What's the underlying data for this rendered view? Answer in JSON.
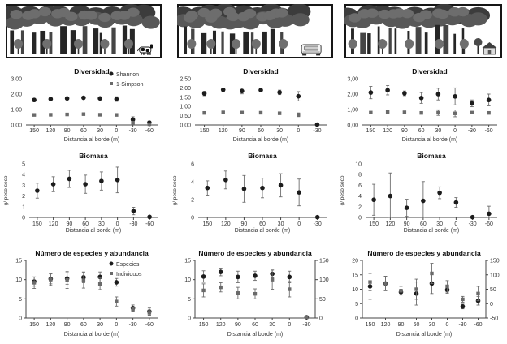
{
  "style": {
    "circle": "#1c1c1c",
    "square": "#6a6a6a",
    "error": "#6e6e6e",
    "border": "#161616"
  },
  "figure": {
    "scenes": [
      {
        "name": "forest-edge-with-cattle",
        "feature": "cow"
      },
      {
        "name": "forest-edge-with-road",
        "feature": "car"
      },
      {
        "name": "forest-edge-with-settlement",
        "feature": "house"
      }
    ]
  },
  "chart_data": [
    {
      "type": "scatter",
      "row": 0,
      "col": 0,
      "title": "Diversidad",
      "xlabel": "Distancia al borde (m)",
      "ylabel": null,
      "x": [
        150,
        120,
        90,
        60,
        30,
        0,
        -30,
        -60
      ],
      "ylim": [
        0,
        3
      ],
      "yticks": [
        0,
        1,
        2,
        3
      ],
      "ytick_labels": [
        "0,00",
        "1,00",
        "2,00",
        "3,00"
      ],
      "left_axis_line": false,
      "legend": [
        "Shannon",
        "1-Simpson"
      ],
      "series": [
        {
          "name": "Shannon",
          "marker": "circle",
          "values": [
            1.62,
            1.68,
            1.72,
            1.76,
            1.72,
            1.68,
            0.35,
            0.15
          ],
          "errors": [
            0.1,
            0.06,
            0.06,
            0.06,
            0.06,
            0.15,
            0.18,
            0.1
          ]
        },
        {
          "name": "1-Simpson",
          "marker": "square",
          "values": [
            0.65,
            0.66,
            0.68,
            0.7,
            0.66,
            0.65,
            0.15,
            0.05
          ],
          "errors": [
            0.03,
            0.03,
            0.03,
            0.03,
            0.03,
            0.05,
            0.08,
            0.04
          ]
        }
      ]
    },
    {
      "type": "scatter",
      "row": 0,
      "col": 1,
      "title": "Diversidad",
      "xlabel": "Distancia al borde (m)",
      "ylabel": null,
      "x": [
        150,
        120,
        90,
        60,
        30,
        0,
        -30
      ],
      "ylim": [
        0,
        2.5
      ],
      "yticks": [
        0,
        0.5,
        1,
        1.5,
        2,
        2.5
      ],
      "ytick_labels": [
        "0,00",
        "0,50",
        "1,00",
        "1,50",
        "2,00",
        "2,50"
      ],
      "left_axis_line": false,
      "legend": null,
      "series": [
        {
          "name": "Shannon",
          "marker": "circle",
          "values": [
            1.7,
            1.9,
            1.83,
            1.88,
            1.76,
            1.55,
            0.02
          ],
          "errors": [
            0.12,
            0.08,
            0.15,
            0.08,
            0.12,
            0.25,
            0
          ]
        },
        {
          "name": "1-Simpson",
          "marker": "square",
          "values": [
            0.65,
            0.68,
            0.67,
            0.66,
            0.63,
            0.55,
            null
          ],
          "errors": [
            0.04,
            0.04,
            0.04,
            0.04,
            0.05,
            0.1,
            0
          ]
        }
      ]
    },
    {
      "type": "scatter",
      "row": 0,
      "col": 2,
      "title": "Diversidad",
      "xlabel": "Distancia al borde (m)",
      "ylabel": null,
      "x": [
        150,
        120,
        90,
        60,
        30,
        0,
        -30,
        -60
      ],
      "ylim": [
        0,
        3
      ],
      "yticks": [
        0,
        1,
        2,
        3
      ],
      "ytick_labels": [
        "0,00",
        "1,00",
        "2,00",
        "3,00"
      ],
      "left_axis_line": false,
      "legend": null,
      "series": [
        {
          "name": "Shannon",
          "marker": "circle",
          "values": [
            2.1,
            2.25,
            2.05,
            1.75,
            2.0,
            1.85,
            1.4,
            1.62
          ],
          "errors": [
            0.4,
            0.3,
            0.15,
            0.35,
            0.38,
            0.55,
            0.22,
            0.38
          ]
        },
        {
          "name": "1-Simpson",
          "marker": "square",
          "values": [
            0.8,
            0.85,
            0.82,
            0.78,
            0.8,
            0.75,
            0.8,
            0.78
          ],
          "errors": [
            0.05,
            0.05,
            0.05,
            0.05,
            0.18,
            0.22,
            0.06,
            0.05
          ]
        }
      ]
    },
    {
      "type": "scatter",
      "row": 1,
      "col": 0,
      "title": "Biomasa",
      "xlabel": "Distancia al borde (m)",
      "ylabel": "g/ peso seco",
      "x": [
        150,
        120,
        90,
        60,
        30,
        0,
        -30,
        -60
      ],
      "ylim": [
        0,
        5
      ],
      "yticks": [
        0,
        1,
        2,
        3,
        4,
        5
      ],
      "ytick_labels": [
        "0",
        "1",
        "2",
        "3",
        "4",
        "5"
      ],
      "left_axis_line": false,
      "legend": null,
      "series": [
        {
          "name": "Biomasa",
          "marker": "circle",
          "values": [
            2.5,
            3.1,
            3.6,
            3.1,
            3.4,
            3.5,
            0.6,
            0.05
          ],
          "errors": [
            0.7,
            0.7,
            0.8,
            0.85,
            0.85,
            1.2,
            0.35,
            0
          ]
        }
      ]
    },
    {
      "type": "scatter",
      "row": 1,
      "col": 1,
      "title": "Biomasa",
      "xlabel": "Distancia al borde (m)",
      "ylabel": "g/ peso seco",
      "x": [
        150,
        120,
        90,
        60,
        30,
        0,
        -30
      ],
      "ylim": [
        0,
        6
      ],
      "yticks": [
        0,
        2,
        4,
        6
      ],
      "ytick_labels": [
        "0",
        "2",
        "4",
        "6"
      ],
      "left_axis_line": false,
      "legend": null,
      "series": [
        {
          "name": "Biomasa",
          "marker": "circle",
          "values": [
            3.3,
            4.2,
            3.2,
            3.3,
            3.6,
            2.8,
            0.03
          ],
          "errors": [
            0.8,
            1.0,
            1.5,
            1.1,
            1.3,
            1.5,
            0
          ]
        }
      ]
    },
    {
      "type": "scatter",
      "row": 1,
      "col": 2,
      "title": "Biomasa",
      "xlabel": "Distancia al borde (m)",
      "ylabel": "g/ peso seco",
      "x": [
        150,
        120,
        90,
        60,
        30,
        0,
        -30,
        -60
      ],
      "ylim": [
        0,
        10
      ],
      "yticks": [
        0,
        2,
        4,
        6,
        8,
        10
      ],
      "ytick_labels": [
        "0",
        "2",
        "4",
        "6",
        "8",
        "10"
      ],
      "left_axis_line": false,
      "legend": null,
      "series": [
        {
          "name": "Biomasa",
          "marker": "circle",
          "values": [
            3.3,
            4.0,
            1.8,
            3.1,
            4.6,
            2.8,
            0.05,
            0.7
          ],
          "errors": [
            2.9,
            4.3,
            1.6,
            3.6,
            1.1,
            0.9,
            0,
            1.4
          ]
        }
      ]
    },
    {
      "type": "scatter",
      "row": 2,
      "col": 0,
      "title": "Número de especies y abundancia",
      "xlabel": "Distancia al borde (m)",
      "ylabel": null,
      "x": [
        150,
        120,
        90,
        60,
        30,
        0,
        -30,
        -60
      ],
      "ylim": [
        0,
        15
      ],
      "yticks": [
        0,
        5,
        10,
        15
      ],
      "ytick_labels": [
        "0",
        "5",
        "10",
        "15"
      ],
      "left_axis_line": true,
      "legend": [
        "Especies",
        "Individuos"
      ],
      "series": [
        {
          "name": "Especies",
          "marker": "circle",
          "values": [
            9.5,
            10.2,
            10.3,
            10.6,
            10.7,
            9.3,
            2.6,
            1.7
          ],
          "errors": [
            1.2,
            1.3,
            1.5,
            1.4,
            1.3,
            1.0,
            0.8,
            0.9
          ]
        },
        {
          "name": "Individuos",
          "marker": "square",
          "values": [
            9.2,
            10.0,
            9.9,
            9.8,
            8.9,
            4.3,
            2.3,
            1.4
          ],
          "errors": [
            1.5,
            1.5,
            2.2,
            2.0,
            1.5,
            1.2,
            0.6,
            0.7
          ]
        }
      ]
    },
    {
      "type": "scatter",
      "row": 2,
      "col": 1,
      "title": "Número de especies y abundancia",
      "xlabel": "Distancia al borde (m)",
      "ylabel": null,
      "x": [
        150,
        120,
        90,
        60,
        30,
        0,
        -30
      ],
      "ylim": [
        0,
        15
      ],
      "yticks": [
        0,
        5,
        10,
        15
      ],
      "ytick_labels": [
        "0",
        "5",
        "10",
        "15"
      ],
      "left_axis_line": true,
      "right_axis": {
        "ylim": [
          0,
          150
        ],
        "ticks": [
          0,
          50,
          100,
          150
        ],
        "labels": [
          "0",
          "50",
          "100",
          "150"
        ]
      },
      "legend": null,
      "series": [
        {
          "name": "Especies",
          "marker": "circle",
          "values": [
            10.8,
            12.0,
            10.7,
            11.0,
            11.5,
            10.7,
            0.2
          ],
          "errors": [
            1.5,
            1.0,
            1.5,
            1.2,
            1.0,
            1.5,
            0.3
          ]
        },
        {
          "name": "Individuos",
          "marker": "square",
          "axis": "right",
          "values": [
            72,
            80,
            65,
            63,
            100,
            75,
            2
          ],
          "errors": [
            17,
            12,
            15,
            13,
            25,
            20,
            3
          ]
        }
      ]
    },
    {
      "type": "scatter",
      "row": 2,
      "col": 2,
      "title": "Número de especies y abundancia",
      "xlabel": "Distancia al borde (m)",
      "ylabel": null,
      "x": [
        150,
        120,
        90,
        60,
        30,
        0,
        -30,
        -60
      ],
      "ylim": [
        0,
        20
      ],
      "yticks": [
        0,
        5,
        10,
        15,
        20
      ],
      "ytick_labels": [
        "0",
        "5",
        "10",
        "15",
        "20"
      ],
      "left_axis_line": true,
      "right_axis": {
        "ylim": [
          -50,
          150
        ],
        "ticks": [
          -50,
          0,
          50,
          100,
          150
        ],
        "labels": [
          "-50",
          "0",
          "50",
          "100",
          "150"
        ]
      },
      "legend": null,
      "series": [
        {
          "name": "Especies",
          "marker": "circle",
          "values": [
            11,
            12,
            9,
            8.5,
            12,
            9.8,
            4,
            6
          ],
          "errors": [
            4.5,
            2.5,
            1.0,
            4.0,
            3.5,
            1.2,
            0.8,
            1.5
          ]
        },
        {
          "name": "Individuos",
          "marker": "square",
          "axis": "right",
          "values": [
            75,
            70,
            45,
            50,
            105,
            60,
            15,
            35
          ],
          "errors": [
            30,
            25,
            15,
            35,
            35,
            20,
            10,
            25
          ]
        }
      ]
    }
  ]
}
